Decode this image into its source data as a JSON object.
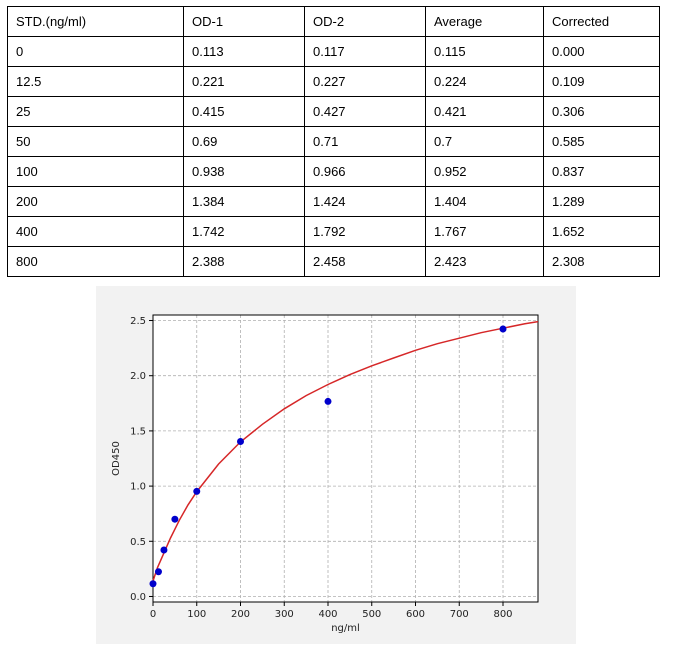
{
  "table": {
    "headers": [
      "STD.(ng/ml)",
      "OD-1",
      "OD-2",
      "Average",
      "Corrected"
    ],
    "rows": [
      [
        "0",
        "0.113",
        "0.117",
        "0.115",
        "0.000"
      ],
      [
        "12.5",
        "0.221",
        "0.227",
        "0.224",
        "0.109"
      ],
      [
        "25",
        "0.415",
        "0.427",
        "0.421",
        "0.306"
      ],
      [
        "50",
        "0.69",
        "0.71",
        "0.7",
        "0.585"
      ],
      [
        "100",
        "0.938",
        "0.966",
        "0.952",
        "0.837"
      ],
      [
        "200",
        "1.384",
        "1.424",
        "1.404",
        "1.289"
      ],
      [
        "400",
        "1.742",
        "1.792",
        "1.767",
        "1.652"
      ],
      [
        "800",
        "2.388",
        "2.458",
        "2.423",
        "2.308"
      ]
    ]
  },
  "chart_data": {
    "type": "scatter",
    "title": "",
    "xlabel": "ng/ml",
    "ylabel": "OD450",
    "xlim": [
      0,
      880
    ],
    "ylim": [
      -0.05,
      2.55
    ],
    "xticks": [
      0,
      100,
      200,
      300,
      400,
      500,
      600,
      700,
      800
    ],
    "yticks": [
      0.0,
      0.5,
      1.0,
      1.5,
      2.0,
      2.5
    ],
    "ytick_labels": [
      "0.0",
      "0.5",
      "1.0",
      "1.5",
      "2.0",
      "2.5"
    ],
    "grid": true,
    "series": [
      {
        "kind": "points",
        "color": "#0000cc",
        "x": [
          0,
          12.5,
          25,
          50,
          100,
          200,
          400,
          800
        ],
        "y": [
          0.115,
          0.224,
          0.421,
          0.7,
          0.952,
          1.404,
          1.767,
          2.423
        ]
      },
      {
        "kind": "fitted-curve",
        "color": "#d62728",
        "x": [
          0,
          10,
          20,
          40,
          60,
          80,
          100,
          150,
          200,
          250,
          300,
          350,
          400,
          450,
          500,
          550,
          600,
          650,
          700,
          750,
          800,
          850,
          880
        ],
        "y": [
          0.14,
          0.26,
          0.35,
          0.53,
          0.69,
          0.83,
          0.95,
          1.2,
          1.4,
          1.56,
          1.7,
          1.82,
          1.92,
          2.01,
          2.09,
          2.16,
          2.23,
          2.29,
          2.34,
          2.39,
          2.43,
          2.47,
          2.49
        ]
      }
    ]
  }
}
